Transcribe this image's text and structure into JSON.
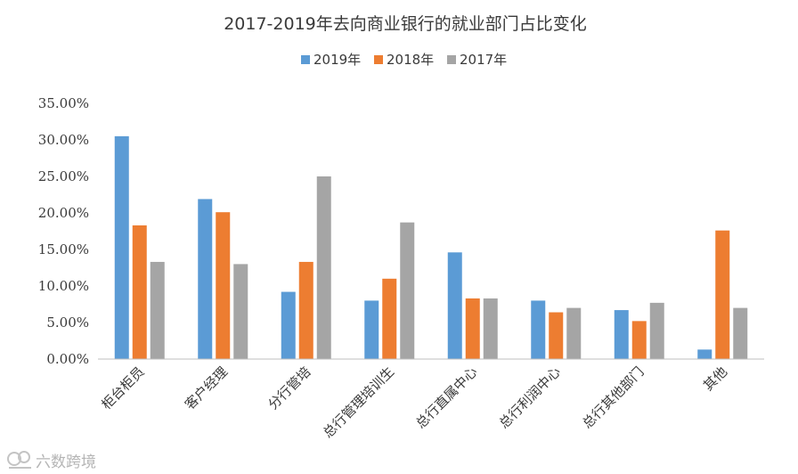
{
  "chart_data": {
    "type": "bar",
    "title": "2017-2019年去向商业银行的就业部门占比变化",
    "categories": [
      "柜台柜员",
      "客户经理",
      "分行管培",
      "总行管理培训生",
      "总行直属中心",
      "总行利润中心",
      "总行其他部门",
      "其他"
    ],
    "series": [
      {
        "name": "2019年",
        "color": "#5b9bd5",
        "values": [
          30.5,
          21.9,
          9.2,
          8.0,
          14.6,
          8.0,
          6.7,
          1.3
        ]
      },
      {
        "name": "2018年",
        "color": "#ed7d31",
        "values": [
          18.3,
          20.1,
          13.3,
          11.0,
          8.3,
          6.4,
          5.2,
          17.6
        ]
      },
      {
        "name": "2017年",
        "color": "#a5a5a5",
        "values": [
          13.3,
          13.0,
          25.0,
          18.7,
          8.3,
          7.0,
          7.7,
          7.0
        ]
      }
    ],
    "ylim": [
      0,
      35
    ],
    "yticks": [
      "0.00%",
      "5.00%",
      "10.00%",
      "15.00%",
      "20.00%",
      "25.00%",
      "30.00%",
      "35.00%"
    ],
    "grid": false,
    "legend_position": "top-center"
  },
  "watermark": "六数跨境"
}
